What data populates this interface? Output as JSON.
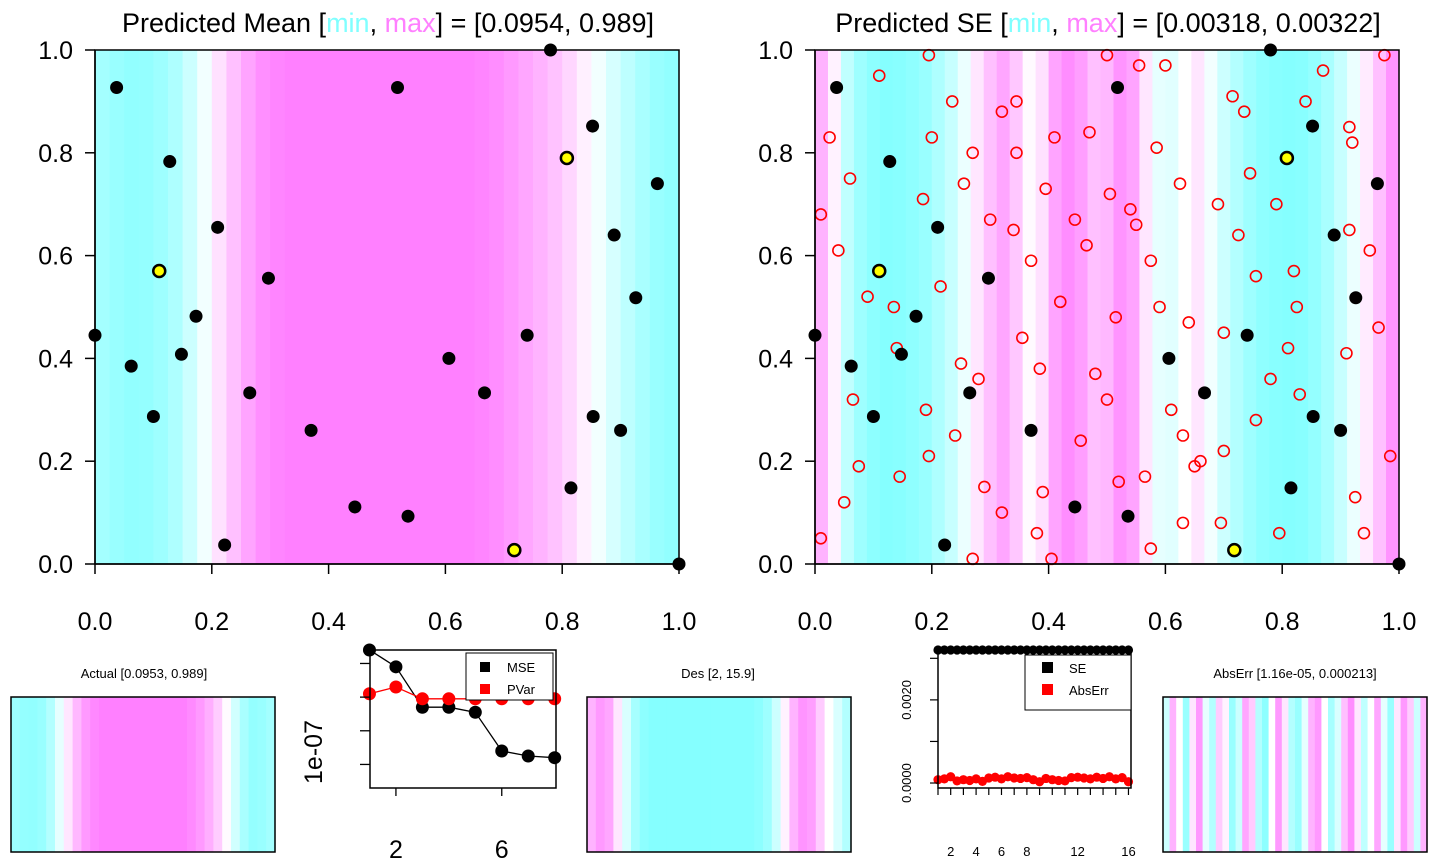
{
  "colors": {
    "min_cyan": "#80FFFF",
    "mid_white": "#FFFFFF",
    "max_magenta": "#FF80FF",
    "point_black": "#000000",
    "point_yellow": "#FFFF00",
    "candidate_red": "#FF0000"
  },
  "chart_data": [
    {
      "id": "mean",
      "type": "heatmap",
      "title_prefix": "Predicted Mean [",
      "title_min": "min",
      "title_sep": ", ",
      "title_max": "max",
      "title_suffix": "] = [0.0954, 0.989]",
      "xlim": [
        0,
        1
      ],
      "ylim": [
        0,
        1
      ],
      "x_ticks": [
        "0.0",
        "0.2",
        "0.4",
        "0.6",
        "0.8",
        "1.0"
      ],
      "y_ticks": [
        "0.0",
        "0.2",
        "0.4",
        "0.6",
        "0.8",
        "1.0"
      ],
      "column_levels": [
        0.14,
        0.1,
        0.07,
        0.08,
        0.12,
        0.18,
        0.3,
        0.45,
        0.62,
        0.75,
        0.86,
        0.94,
        0.98,
        1,
        1,
        1,
        1,
        1,
        1,
        1,
        1,
        1,
        1,
        1,
        1,
        1,
        0.98,
        0.95,
        0.9,
        0.85,
        0.8,
        0.74,
        0.66,
        0.56,
        0.45,
        0.34,
        0.24,
        0.16,
        0.1,
        0.07
      ],
      "points": [
        [
          0.0,
          0.445
        ],
        [
          0.037,
          0.927
        ],
        [
          0.062,
          0.385
        ],
        [
          0.1,
          0.287
        ],
        [
          0.128,
          0.783
        ],
        [
          0.148,
          0.408
        ],
        [
          0.173,
          0.482
        ],
        [
          0.21,
          0.655
        ],
        [
          0.222,
          0.037
        ],
        [
          0.265,
          0.333
        ],
        [
          0.297,
          0.556
        ],
        [
          0.37,
          0.26
        ],
        [
          0.445,
          0.111
        ],
        [
          0.518,
          0.927
        ],
        [
          0.536,
          0.093
        ],
        [
          0.606,
          0.4
        ],
        [
          0.667,
          0.333
        ],
        [
          0.74,
          0.445
        ],
        [
          0.78,
          1.0
        ],
        [
          0.815,
          0.148
        ],
        [
          0.852,
          0.852
        ],
        [
          0.853,
          0.287
        ],
        [
          0.889,
          0.64
        ],
        [
          0.9,
          0.26
        ],
        [
          0.926,
          0.518
        ],
        [
          0.963,
          0.74
        ],
        [
          1.0,
          0.0
        ]
      ],
      "highlight_points": [
        [
          0.11,
          0.57
        ],
        [
          0.808,
          0.79
        ],
        [
          0.718,
          0.027
        ]
      ]
    },
    {
      "id": "se",
      "type": "heatmap",
      "title_prefix": "Predicted SE [",
      "title_min": "min",
      "title_sep": ", ",
      "title_max": "max",
      "title_suffix": "] = [0.00318, 0.00322]",
      "xlim": [
        0,
        1
      ],
      "ylim": [
        0,
        1
      ],
      "x_ticks": [
        "0.0",
        "0.2",
        "0.4",
        "0.6",
        "0.8",
        "1.0"
      ],
      "y_ticks": [
        "0.0",
        "0.2",
        "0.4",
        "0.6",
        "0.8",
        "1.0"
      ],
      "column_levels": [
        0.8,
        0.55,
        0.25,
        0.12,
        0.05,
        0.02,
        0.03,
        0.06,
        0.1,
        0.18,
        0.28,
        0.42,
        0.6,
        0.75,
        0.85,
        0.72,
        0.52,
        0.62,
        0.86,
        0.95,
        0.88,
        0.75,
        0.78,
        0.92,
        0.86,
        0.6,
        0.4,
        0.38,
        0.5,
        0.6,
        0.45,
        0.3,
        0.2,
        0.12,
        0.06,
        0.03,
        0.02,
        0.03,
        0.08,
        0.16,
        0.28,
        0.42,
        0.58,
        0.75,
        0.92
      ],
      "points": [
        [
          0.0,
          0.445
        ],
        [
          0.037,
          0.927
        ],
        [
          0.062,
          0.385
        ],
        [
          0.1,
          0.287
        ],
        [
          0.128,
          0.783
        ],
        [
          0.148,
          0.408
        ],
        [
          0.173,
          0.482
        ],
        [
          0.21,
          0.655
        ],
        [
          0.222,
          0.037
        ],
        [
          0.265,
          0.333
        ],
        [
          0.297,
          0.556
        ],
        [
          0.37,
          0.26
        ],
        [
          0.445,
          0.111
        ],
        [
          0.518,
          0.927
        ],
        [
          0.536,
          0.093
        ],
        [
          0.606,
          0.4
        ],
        [
          0.667,
          0.333
        ],
        [
          0.74,
          0.445
        ],
        [
          0.78,
          1.0
        ],
        [
          0.815,
          0.148
        ],
        [
          0.852,
          0.852
        ],
        [
          0.853,
          0.287
        ],
        [
          0.889,
          0.64
        ],
        [
          0.9,
          0.26
        ],
        [
          0.926,
          0.518
        ],
        [
          0.963,
          0.74
        ],
        [
          1.0,
          0.0
        ]
      ],
      "highlight_points": [
        [
          0.11,
          0.57
        ],
        [
          0.808,
          0.79
        ],
        [
          0.718,
          0.027
        ]
      ],
      "candidates": [
        [
          0.01,
          0.05
        ],
        [
          0.01,
          0.68
        ],
        [
          0.025,
          0.83
        ],
        [
          0.04,
          0.61
        ],
        [
          0.05,
          0.12
        ],
        [
          0.06,
          0.75
        ],
        [
          0.065,
          0.32
        ],
        [
          0.075,
          0.19
        ],
        [
          0.09,
          0.52
        ],
        [
          0.11,
          0.95
        ],
        [
          0.135,
          0.5
        ],
        [
          0.14,
          0.42
        ],
        [
          0.145,
          0.17
        ],
        [
          0.185,
          0.71
        ],
        [
          0.19,
          0.3
        ],
        [
          0.195,
          0.21
        ],
        [
          0.2,
          0.83
        ],
        [
          0.195,
          0.99
        ],
        [
          0.215,
          0.54
        ],
        [
          0.235,
          0.9
        ],
        [
          0.24,
          0.25
        ],
        [
          0.25,
          0.39
        ],
        [
          0.255,
          0.74
        ],
        [
          0.27,
          0.8
        ],
        [
          0.27,
          0.01
        ],
        [
          0.28,
          0.36
        ],
        [
          0.29,
          0.15
        ],
        [
          0.3,
          0.67
        ],
        [
          0.32,
          0.1
        ],
        [
          0.32,
          0.88
        ],
        [
          0.34,
          0.65
        ],
        [
          0.345,
          0.8
        ],
        [
          0.345,
          0.9
        ],
        [
          0.355,
          0.44
        ],
        [
          0.37,
          0.59
        ],
        [
          0.38,
          0.06
        ],
        [
          0.385,
          0.38
        ],
        [
          0.39,
          0.14
        ],
        [
          0.395,
          0.73
        ],
        [
          0.405,
          0.01
        ],
        [
          0.41,
          0.83
        ],
        [
          0.42,
          0.51
        ],
        [
          0.445,
          0.67
        ],
        [
          0.455,
          0.24
        ],
        [
          0.465,
          0.62
        ],
        [
          0.47,
          0.84
        ],
        [
          0.48,
          0.37
        ],
        [
          0.5,
          0.32
        ],
        [
          0.505,
          0.72
        ],
        [
          0.5,
          0.99
        ],
        [
          0.515,
          0.48
        ],
        [
          0.52,
          0.16
        ],
        [
          0.54,
          0.69
        ],
        [
          0.55,
          0.66
        ],
        [
          0.555,
          0.97
        ],
        [
          0.565,
          0.17
        ],
        [
          0.575,
          0.59
        ],
        [
          0.575,
          0.03
        ],
        [
          0.585,
          0.81
        ],
        [
          0.59,
          0.5
        ],
        [
          0.6,
          0.97
        ],
        [
          0.61,
          0.3
        ],
        [
          0.625,
          0.74
        ],
        [
          0.63,
          0.25
        ],
        [
          0.63,
          0.08
        ],
        [
          0.64,
          0.47
        ],
        [
          0.65,
          0.19
        ],
        [
          0.66,
          0.2
        ],
        [
          0.69,
          0.7
        ],
        [
          0.695,
          0.08
        ],
        [
          0.7,
          0.22
        ],
        [
          0.7,
          0.45
        ],
        [
          0.715,
          0.91
        ],
        [
          0.725,
          0.64
        ],
        [
          0.735,
          0.88
        ],
        [
          0.745,
          0.76
        ],
        [
          0.755,
          0.56
        ],
        [
          0.755,
          0.28
        ],
        [
          0.78,
          0.36
        ],
        [
          0.79,
          0.7
        ],
        [
          0.795,
          0.06
        ],
        [
          0.81,
          0.42
        ],
        [
          0.82,
          0.57
        ],
        [
          0.825,
          0.5
        ],
        [
          0.83,
          0.33
        ],
        [
          0.84,
          0.9
        ],
        [
          0.87,
          0.96
        ],
        [
          0.91,
          0.41
        ],
        [
          0.915,
          0.85
        ],
        [
          0.915,
          0.65
        ],
        [
          0.92,
          0.82
        ],
        [
          0.925,
          0.13
        ],
        [
          0.94,
          0.06
        ],
        [
          0.95,
          0.61
        ],
        [
          0.965,
          0.46
        ],
        [
          0.975,
          0.99
        ],
        [
          0.985,
          0.21
        ]
      ]
    },
    {
      "id": "actual",
      "type": "heatmap",
      "title": "Actual [0.0953, 0.989]",
      "column_levels": [
        0.12,
        0.08,
        0.07,
        0.1,
        0.2,
        0.4,
        0.6,
        0.78,
        0.9,
        0.97,
        1,
        1,
        1,
        1,
        1,
        1,
        1,
        1,
        1,
        1,
        0.96,
        0.9,
        0.82,
        0.7,
        0.52,
        0.32,
        0.16,
        0.08,
        0.1,
        0.14
      ]
    },
    {
      "id": "mse",
      "type": "line",
      "x": [
        1,
        2,
        3,
        4,
        5,
        6,
        7,
        8
      ],
      "ylabel": "1e-07",
      "x_ticks": [
        "2",
        "6"
      ],
      "x_tick_values": [
        2,
        6
      ],
      "ylim": [
        0.3,
        4.4
      ],
      "y_tick_values": [
        1,
        2,
        3,
        4
      ],
      "xlim": [
        1,
        8
      ],
      "series": [
        {
          "name": "MSE",
          "color": "#000000",
          "values": [
            4.4,
            3.9,
            2.7,
            2.7,
            2.55,
            1.4,
            1.25,
            1.2
          ]
        },
        {
          "name": "PVar",
          "color": "#FF0000",
          "values": [
            3.1,
            3.3,
            2.95,
            2.95,
            2.95,
            2.95,
            2.95,
            2.95
          ]
        }
      ]
    },
    {
      "id": "des",
      "type": "heatmap",
      "title": "Des [2, 15.9]",
      "column_levels": [
        0.8,
        0.9,
        0.85,
        0.6,
        0.35,
        0.15,
        0.05,
        0.02,
        0.02,
        0.02,
        0.02,
        0.02,
        0.02,
        0.02,
        0.02,
        0.02,
        0.02,
        0.02,
        0.02,
        0.05,
        0.12,
        0.3,
        0.55,
        0.8,
        0.92,
        0.88,
        0.7,
        0.5,
        0.35,
        0.2
      ]
    },
    {
      "id": "se_abserr",
      "type": "scatter",
      "x_ticks": [
        "2",
        "4",
        "6",
        "8",
        "12",
        "16"
      ],
      "x_tick_values": [
        2,
        4,
        6,
        8,
        12,
        16
      ],
      "y_ticks": [
        "0.0000",
        "0.0020"
      ],
      "y_tick_values": [
        0.0,
        0.002
      ],
      "xlim": [
        1,
        16.2
      ],
      "ylim": [
        -0.00012,
        0.0032
      ],
      "series": [
        {
          "name": "SE",
          "color": "#000000",
          "x": [
            1,
            1.5,
            2,
            2.5,
            3,
            3.5,
            4,
            4.5,
            5,
            5.5,
            6,
            6.5,
            7,
            7.5,
            8,
            8.5,
            9,
            9.5,
            10,
            10.5,
            11,
            11.5,
            12,
            12.5,
            13,
            13.5,
            14,
            14.5,
            15,
            15.5,
            16
          ],
          "values": [
            0.0032,
            0.0032,
            0.0032,
            0.0032,
            0.0032,
            0.0032,
            0.0032,
            0.0032,
            0.0032,
            0.0032,
            0.0032,
            0.0032,
            0.0032,
            0.0032,
            0.0032,
            0.0032,
            0.0032,
            0.0032,
            0.0032,
            0.0032,
            0.0032,
            0.0032,
            0.0032,
            0.0032,
            0.0032,
            0.0032,
            0.0032,
            0.0032,
            0.0032,
            0.0032,
            0.0032
          ]
        },
        {
          "name": "AbsErr",
          "color": "#FF0000",
          "x": [
            1,
            1.5,
            2,
            2.5,
            3,
            3.5,
            4,
            4.5,
            5,
            5.5,
            6,
            6.5,
            7,
            7.5,
            8,
            8.5,
            9,
            9.5,
            10,
            10.5,
            11,
            11.5,
            12,
            12.5,
            13,
            13.5,
            14,
            14.5,
            15,
            15.5,
            16
          ],
          "values": [
            8e-05,
            0.0001,
            0.00015,
            5e-05,
            8e-05,
            6e-05,
            0.0001,
            4e-05,
            0.00012,
            0.00014,
            0.0001,
            0.00015,
            0.00012,
            0.00011,
            0.00013,
            8e-05,
            3e-05,
            0.00011,
            8e-05,
            6e-05,
            5e-05,
            0.00013,
            0.00014,
            0.00012,
            0.0001,
            0.00014,
            0.00011,
            0.00015,
            0.0001,
            0.00013,
            3e-05
          ]
        }
      ]
    },
    {
      "id": "abserr",
      "type": "heatmap",
      "title": "AbsErr [1.16e-05, 0.000213]",
      "column_levels": [
        0.3,
        0.8,
        0.5,
        0.1,
        0.6,
        0.9,
        0.4,
        0.2,
        0.7,
        0.55,
        0.1,
        0.3,
        0.85,
        0.7,
        0.2,
        0.05,
        0.5,
        0.9,
        0.6,
        0.2,
        0.1,
        0.4,
        0.8,
        0.9,
        0.5,
        0.15,
        0.35,
        0.75,
        0.95,
        0.6,
        0.25,
        0.5,
        0.85,
        0.4,
        0.1,
        0.6,
        0.9,
        0.7,
        0.3,
        0.8
      ]
    }
  ]
}
